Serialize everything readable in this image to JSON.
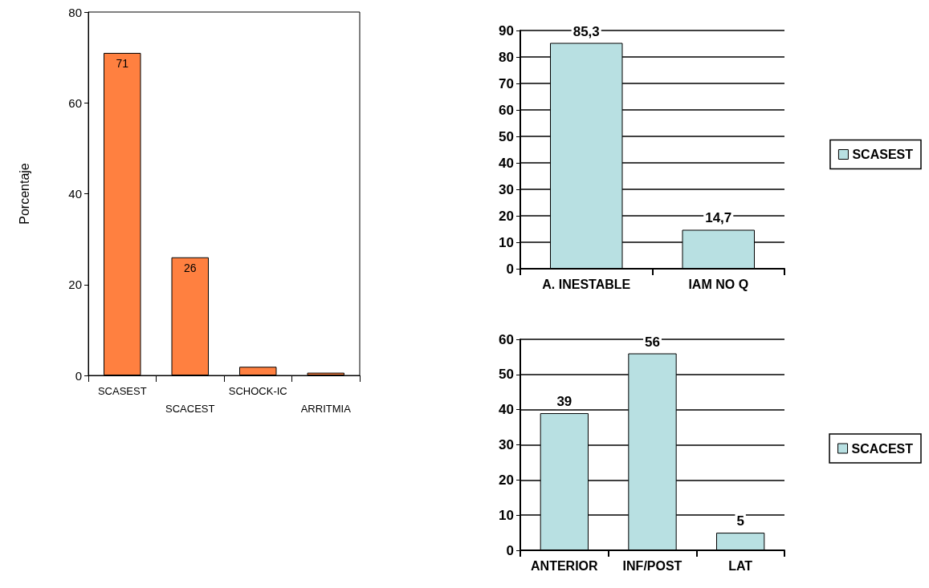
{
  "chart_data": [
    {
      "type": "bar",
      "ylabel": "Porcentaje",
      "categories": [
        "SCASEST",
        "SCACEST",
        "SCHOCK-IC",
        "ARRITMIA"
      ],
      "values": [
        71,
        26,
        1.9,
        0.6
      ],
      "value_labels": [
        "71",
        "26",
        null,
        null
      ],
      "color": "#ff8040",
      "ylim": [
        0,
        80
      ],
      "yticks": [
        0,
        20,
        40,
        60,
        80
      ],
      "grid": false,
      "legend": false
    },
    {
      "type": "bar",
      "categories": [
        "A. INESTABLE",
        "IAM NO Q"
      ],
      "series": [
        {
          "name": "SCASEST",
          "color": "#b8e0e2",
          "values": [
            85.3,
            14.7
          ],
          "value_labels": [
            "85,3",
            "14,7"
          ]
        }
      ],
      "ylim": [
        0,
        90
      ],
      "yticks": [
        0,
        10,
        20,
        30,
        40,
        50,
        60,
        70,
        80,
        90
      ],
      "grid": "y",
      "legend": "right"
    },
    {
      "type": "bar",
      "categories": [
        "ANTERIOR",
        "INF/POST",
        "LAT"
      ],
      "series": [
        {
          "name": "SCACEST",
          "color": "#b8e0e2",
          "values": [
            39,
            56,
            5
          ],
          "value_labels": [
            "39",
            "56",
            "5"
          ]
        }
      ],
      "ylim": [
        0,
        60
      ],
      "yticks": [
        0,
        10,
        20,
        30,
        40,
        50,
        60
      ],
      "grid": "y",
      "legend": "right"
    }
  ]
}
